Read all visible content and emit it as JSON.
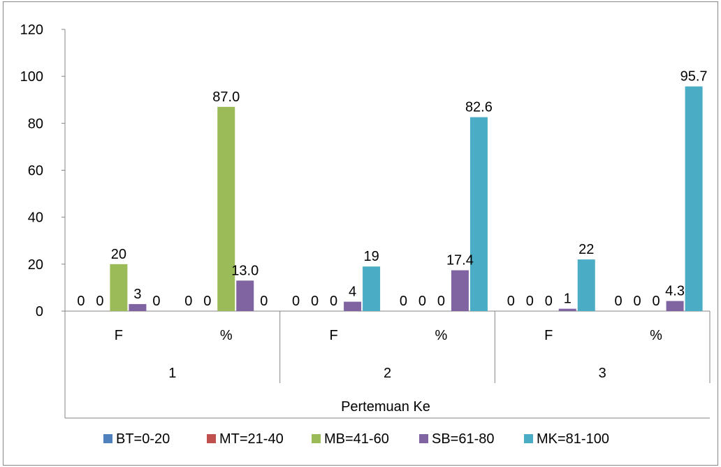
{
  "chart_data": {
    "type": "bar",
    "xlabel": "Pertemuan Ke",
    "ylim": [
      0,
      120
    ],
    "yticks": [
      0,
      20,
      40,
      60,
      80,
      100,
      120
    ],
    "grid": false,
    "legend_position": "bottom",
    "groups": [
      {
        "label": "1",
        "categories": [
          "F",
          "%"
        ]
      },
      {
        "label": "2",
        "categories": [
          "F",
          "%"
        ]
      },
      {
        "label": "3",
        "categories": [
          "F",
          "%"
        ]
      }
    ],
    "series": [
      {
        "name": "BT=0-20",
        "color": "#4f81bd",
        "values": [
          0,
          0,
          0,
          0,
          0,
          0
        ],
        "labels": [
          "0",
          "0",
          "0",
          "0",
          "0",
          "0"
        ]
      },
      {
        "name": "MT=21-40",
        "color": "#c0504d",
        "values": [
          0,
          0,
          0,
          0,
          0,
          0
        ],
        "labels": [
          "0",
          "0",
          "0",
          "0",
          "0",
          "0"
        ]
      },
      {
        "name": "MB=41-60",
        "color": "#9bbb59",
        "values": [
          20,
          87.0,
          0,
          0,
          0,
          0
        ],
        "labels": [
          "20",
          "87.0",
          "0",
          "0",
          "0",
          "0"
        ]
      },
      {
        "name": "SB=61-80",
        "color": "#8064a2",
        "values": [
          3,
          13.0,
          4,
          17.4,
          1,
          4.3
        ],
        "labels": [
          "3",
          "13.0",
          "4",
          "17.4",
          "1",
          "4.3"
        ]
      },
      {
        "name": "MK=81-100",
        "color": "#4bacc6",
        "values": [
          0,
          0,
          19,
          82.6,
          22,
          95.7
        ],
        "labels": [
          "0",
          "0",
          "19",
          "82.6",
          "22",
          "95.7"
        ]
      }
    ]
  }
}
